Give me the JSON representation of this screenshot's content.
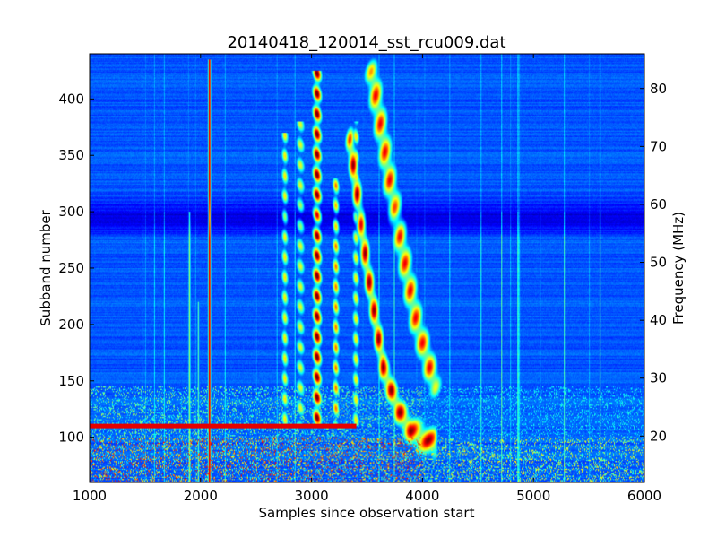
{
  "chart_data": {
    "type": "heatmap",
    "title": "20140418_120014_sst_rcu009.dat",
    "xlabel": "Samples since observation start",
    "ylabel": "Subband number",
    "y2label": "Frequency (MHz)",
    "xlim": [
      1000,
      6000
    ],
    "ylim": [
      60,
      440
    ],
    "y2lim": [
      12,
      86
    ],
    "xticks": [
      "1000",
      "2000",
      "3000",
      "4000",
      "5000",
      "6000"
    ],
    "yticks": [
      "100",
      "150",
      "200",
      "250",
      "300",
      "350",
      "400"
    ],
    "y2ticks": [
      "20",
      "30",
      "40",
      "50",
      "60",
      "70",
      "80"
    ],
    "colormap": "jet",
    "colormap_stops": [
      "#00007f",
      "#0000ff",
      "#0080ff",
      "#00ffff",
      "#80ff80",
      "#ffff00",
      "#ff8000",
      "#ff0000",
      "#7f0000"
    ],
    "background_level": 0.18,
    "features": [
      {
        "kind": "vertical_line",
        "x": 2080,
        "y_from": 60,
        "y_to": 435,
        "intensity": 1.0
      },
      {
        "kind": "vertical_line",
        "x": 1900,
        "y_from": 60,
        "y_to": 300,
        "intensity": 0.45
      },
      {
        "kind": "vertical_line",
        "x": 1980,
        "y_from": 60,
        "y_to": 220,
        "intensity": 0.35
      },
      {
        "kind": "burst_band",
        "x_center": 3050,
        "width": 90,
        "y_from": 110,
        "y_to": 425,
        "intensity": 0.95
      },
      {
        "kind": "burst_band",
        "x_center": 2760,
        "width": 70,
        "y_from": 110,
        "y_to": 370,
        "intensity": 0.6
      },
      {
        "kind": "burst_band",
        "x_center": 2900,
        "width": 90,
        "y_from": 110,
        "y_to": 380,
        "intensity": 0.55
      },
      {
        "kind": "burst_band",
        "x_center": 3220,
        "width": 70,
        "y_from": 110,
        "y_to": 330,
        "intensity": 0.7
      },
      {
        "kind": "burst_band",
        "x_center": 3400,
        "width": 70,
        "y_from": 110,
        "y_to": 380,
        "intensity": 0.6
      },
      {
        "kind": "drifting_burst",
        "points": [
          [
            3350,
            360
          ],
          [
            3500,
            250
          ],
          [
            3650,
            160
          ],
          [
            3780,
            125
          ],
          [
            3900,
            105
          ],
          [
            4100,
            95
          ]
        ],
        "width": 80,
        "intensity": 0.95
      },
      {
        "kind": "drifting_burst",
        "points": [
          [
            3550,
            420
          ],
          [
            3700,
            330
          ],
          [
            3850,
            250
          ],
          [
            3950,
            200
          ],
          [
            4100,
            150
          ]
        ],
        "width": 130,
        "intensity": 0.85
      },
      {
        "kind": "dark_band",
        "y_from": 275,
        "y_to": 315,
        "depth": 0.13
      },
      {
        "kind": "rfi_band",
        "y_from": 60,
        "y_to": 145,
        "intensity": 0.5
      },
      {
        "kind": "strong_rfi_row",
        "y": 110,
        "x_from": 1000,
        "x_to": 3400,
        "intensity": 0.9
      }
    ]
  }
}
